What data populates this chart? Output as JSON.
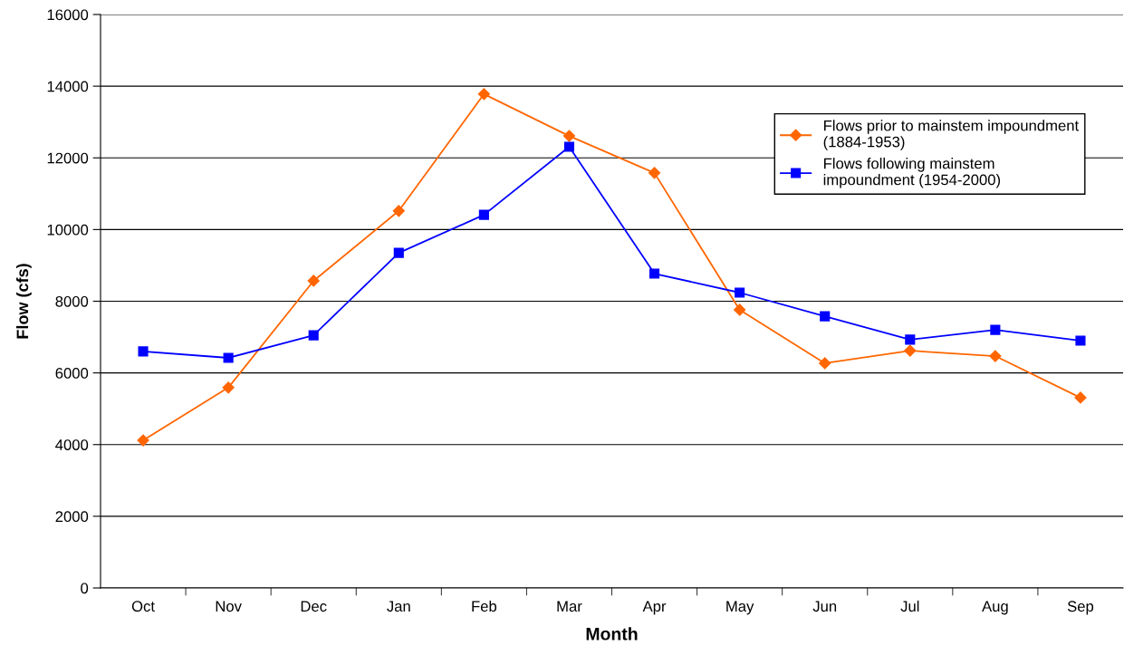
{
  "chart_data": {
    "type": "line",
    "xlabel": "Month",
    "ylabel": "Flow (cfs)",
    "categories": [
      "Oct",
      "Nov",
      "Dec",
      "Jan",
      "Feb",
      "Mar",
      "Apr",
      "May",
      "Jun",
      "Jul",
      "Aug",
      "Sep"
    ],
    "series": [
      {
        "name": "Flows prior to mainstem impoundment\n(1884-1953)",
        "color": "#ff6600",
        "marker": "diamond",
        "values": [
          4120,
          5590,
          8570,
          10520,
          13780,
          12610,
          11580,
          7760,
          6270,
          6620,
          6470,
          5310
        ]
      },
      {
        "name": "Flows following mainstem\nimpoundment (1954-2000)",
        "color": "#0000ff",
        "marker": "square",
        "values": [
          6600,
          6420,
          7050,
          9350,
          10410,
          12310,
          8770,
          8240,
          7580,
          6930,
          7200,
          6900
        ]
      }
    ],
    "ylim": [
      0,
      16000
    ],
    "yticks": [
      0,
      2000,
      4000,
      6000,
      8000,
      10000,
      12000,
      14000,
      16000
    ],
    "grid": "y",
    "legend": "top right",
    "line_style": "solid"
  }
}
